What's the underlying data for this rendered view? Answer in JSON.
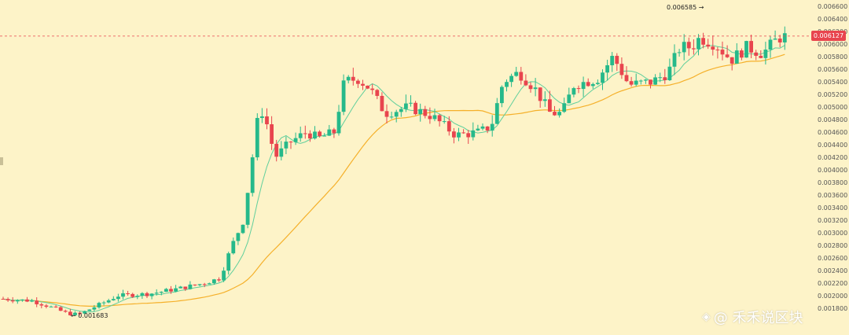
{
  "chart_data": {
    "type": "candlestick",
    "title": "",
    "xlabel": "",
    "ylabel": "",
    "ylim": [
      0.0018,
      0.0066
    ],
    "y_ticks": [
      "0.006600",
      "0.006400",
      "0.006200",
      "0.006000",
      "0.005800",
      "0.005600",
      "0.005400",
      "0.005200",
      "0.005000",
      "0.004800",
      "0.004600",
      "0.004400",
      "0.004200",
      "0.004000",
      "0.003800",
      "0.003600",
      "0.003400",
      "0.003200",
      "0.003000",
      "0.002800",
      "0.002600",
      "0.002400",
      "0.002200",
      "0.002000",
      "0.001800"
    ],
    "y_tick_values": [
      0.0066,
      0.0064,
      0.0062,
      0.006,
      0.0058,
      0.0056,
      0.0054,
      0.0052,
      0.005,
      0.0048,
      0.0046,
      0.0044,
      0.0042,
      0.004,
      0.0038,
      0.0036,
      0.0034,
      0.0032,
      0.003,
      0.0028,
      0.0026,
      0.0024,
      0.0022,
      0.002,
      0.0018
    ],
    "last_price": 0.006127,
    "last_price_label": "0.006127",
    "high_label": "0.006585",
    "low_label": "0.001683",
    "grid": false,
    "colors": {
      "up": "#26b98a",
      "down": "#e8454e",
      "ma_fast": "#5fcf9c",
      "ma_slow": "#f5b02a",
      "price_line": "#e8454e"
    },
    "series": [
      {
        "name": "",
        "kind": "ohlc",
        "values": []
      },
      {
        "name": "",
        "kind": "moving-average-fast"
      },
      {
        "name": "",
        "kind": "moving-average-slow"
      }
    ]
  },
  "watermark": {
    "icon": "diamond-logo-icon",
    "text": "@ 禾禾说区块"
  }
}
